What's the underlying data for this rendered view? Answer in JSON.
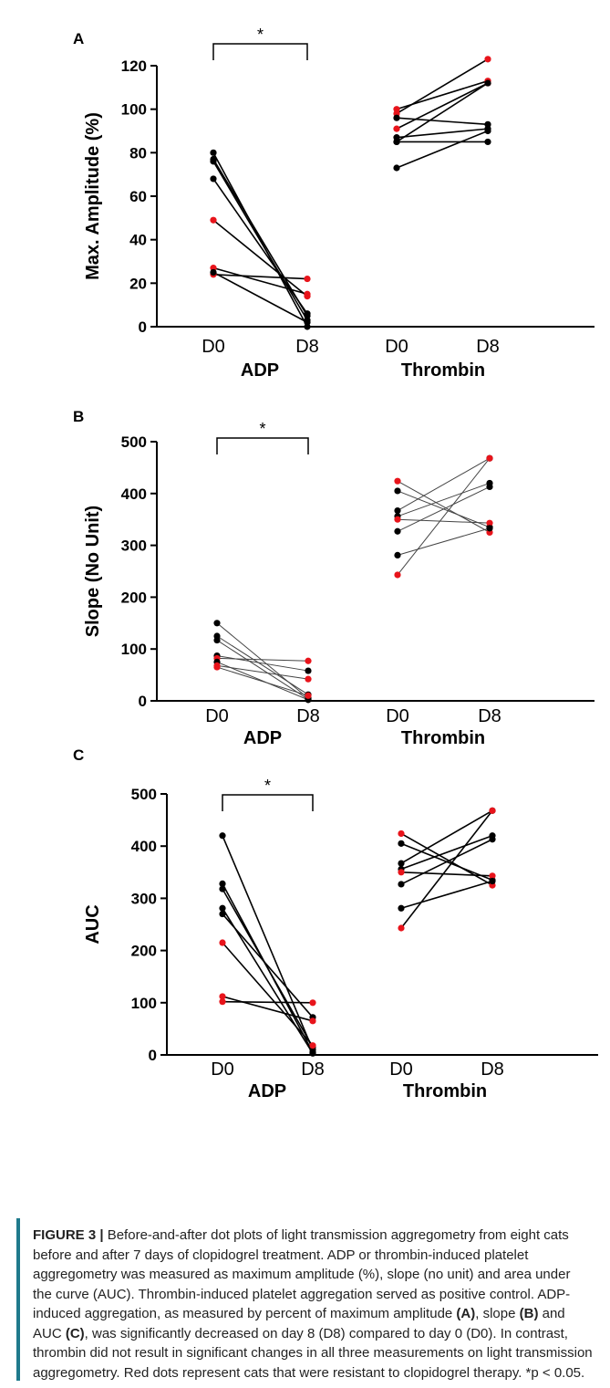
{
  "chart_data": [
    {
      "panel": "A",
      "type": "line",
      "ylabel": "Max. Amplitude (%)",
      "ylim": [
        0,
        120
      ],
      "yticks": [
        0,
        20,
        40,
        60,
        80,
        100,
        120
      ],
      "groups": [
        {
          "name": "ADP",
          "x": [
            "D0",
            "D8"
          ]
        },
        {
          "name": "Thrombin",
          "x": [
            "D0",
            "D8"
          ]
        }
      ],
      "significance": {
        "between": [
          "D0",
          "D8"
        ],
        "group": "ADP",
        "label": "*"
      },
      "series": {
        "ADP": [
          {
            "values": [
              80,
              0
            ],
            "resistant": false
          },
          {
            "values": [
              77,
              5
            ],
            "resistant": false
          },
          {
            "values": [
              76,
              3
            ],
            "resistant": false
          },
          {
            "values": [
              68,
              6
            ],
            "resistant": false
          },
          {
            "values": [
              49,
              14
            ],
            "resistant": true
          },
          {
            "values": [
              27,
              15
            ],
            "resistant": true
          },
          {
            "values": [
              24,
              22
            ],
            "resistant": true
          },
          {
            "values": [
              25,
              2
            ],
            "resistant": false
          }
        ],
        "Thrombin": [
          {
            "values": [
              100,
              113
            ],
            "resistant": true
          },
          {
            "values": [
              98,
              123
            ],
            "resistant": true
          },
          {
            "values": [
              96,
              93
            ],
            "resistant": false
          },
          {
            "values": [
              91,
              112
            ],
            "resistant": true
          },
          {
            "values": [
              87,
              91
            ],
            "resistant": false
          },
          {
            "values": [
              85,
              112
            ],
            "resistant": false
          },
          {
            "values": [
              85,
              85
            ],
            "resistant": false
          },
          {
            "values": [
              73,
              90
            ],
            "resistant": false
          }
        ]
      }
    },
    {
      "panel": "B",
      "type": "line",
      "ylabel": "Slope (No Unit)",
      "ylim": [
        0,
        500
      ],
      "yticks": [
        0,
        100,
        200,
        300,
        400,
        500
      ],
      "groups": [
        {
          "name": "ADP",
          "x": [
            "D0",
            "D8"
          ]
        },
        {
          "name": "Thrombin",
          "x": [
            "D0",
            "D8"
          ]
        }
      ],
      "significance": {
        "between": [
          "D0",
          "D8"
        ],
        "group": "ADP",
        "label": "*"
      },
      "series": {
        "ADP": [
          {
            "values": [
              150,
              5
            ],
            "resistant": false
          },
          {
            "values": [
              125,
              12
            ],
            "resistant": false
          },
          {
            "values": [
              117,
              3
            ],
            "resistant": false
          },
          {
            "values": [
              87,
              58
            ],
            "resistant": false
          },
          {
            "values": [
              82,
              77
            ],
            "resistant": true
          },
          {
            "values": [
              75,
              2
            ],
            "resistant": false
          },
          {
            "values": [
              68,
              42
            ],
            "resistant": true
          },
          {
            "values": [
              65,
              10
            ],
            "resistant": true
          }
        ],
        "Thrombin": [
          {
            "values": [
              424,
              325
            ],
            "resistant": true
          },
          {
            "values": [
              405,
              335
            ],
            "resistant": false
          },
          {
            "values": [
              367,
              468
            ],
            "resistant": false
          },
          {
            "values": [
              356,
              420
            ],
            "resistant": false
          },
          {
            "values": [
              350,
              343
            ],
            "resistant": true
          },
          {
            "values": [
              327,
              413
            ],
            "resistant": false
          },
          {
            "values": [
              281,
              333
            ],
            "resistant": false
          },
          {
            "values": [
              243,
              468
            ],
            "resistant": true
          }
        ]
      }
    },
    {
      "panel": "C",
      "type": "line",
      "ylabel": "AUC",
      "ylim": [
        0,
        500
      ],
      "yticks": [
        0,
        100,
        200,
        300,
        400,
        500
      ],
      "groups": [
        {
          "name": "ADP",
          "x": [
            "D0",
            "D8"
          ]
        },
        {
          "name": "Thrombin",
          "x": [
            "D0",
            "D8"
          ]
        }
      ],
      "significance": {
        "between": [
          "D0",
          "D8"
        ],
        "group": "ADP",
        "label": "*"
      },
      "series": {
        "ADP": [
          {
            "values": [
              420,
              10
            ],
            "resistant": false
          },
          {
            "values": [
              328,
              5
            ],
            "resistant": false
          },
          {
            "values": [
              318,
              15
            ],
            "resistant": false
          },
          {
            "values": [
              281,
              3
            ],
            "resistant": false
          },
          {
            "values": [
              270,
              72
            ],
            "resistant": false
          },
          {
            "values": [
              215,
              18
            ],
            "resistant": true
          },
          {
            "values": [
              112,
              65
            ],
            "resistant": true
          },
          {
            "values": [
              102,
              100
            ],
            "resistant": true
          }
        ],
        "Thrombin": [
          {
            "values": [
              424,
              325
            ],
            "resistant": true
          },
          {
            "values": [
              405,
              335
            ],
            "resistant": false
          },
          {
            "values": [
              367,
              468
            ],
            "resistant": false
          },
          {
            "values": [
              356,
              420
            ],
            "resistant": false
          },
          {
            "values": [
              350,
              343
            ],
            "resistant": true
          },
          {
            "values": [
              327,
              413
            ],
            "resistant": false
          },
          {
            "values": [
              281,
              333
            ],
            "resistant": false
          },
          {
            "values": [
              243,
              468
            ],
            "resistant": true
          }
        ]
      }
    }
  ],
  "colors": {
    "resistant_dot": "#e8141b",
    "dot": "#000000",
    "axis": "#000000",
    "caption_bar": "#1f7a8c"
  },
  "caption": {
    "label": "FIGURE 3 |",
    "part1": " Before-and-after dot plots of light transmission aggregometry from eight cats before and after 7 days of clopidogrel treatment. ADP or thrombin-induced platelet aggregometry was measured as maximum amplitude (%), slope (no unit) and area under the curve (AUC). Thrombin-induced platelet aggregation served as positive control. ADP-induced aggregation, as measured by percent of maximum amplitude ",
    "ref_a": "(A)",
    "part2": ", slope ",
    "ref_b": "(B)",
    "part3": " and AUC ",
    "ref_c": "(C)",
    "part4": ", was significantly decreased on day 8 (D8) compared to day 0 (D0). In contrast, thrombin did not result in significant changes in all three measurements on light transmission aggregometry. Red dots represent cats that were resistant to clopidogrel therapy. *p < 0.05."
  }
}
